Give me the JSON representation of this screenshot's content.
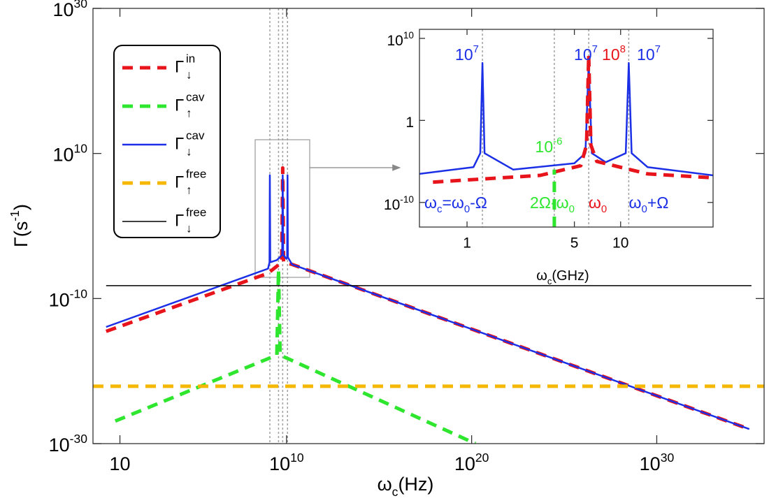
{
  "chart_data": [
    {
      "type": "line",
      "xscale": "log",
      "yscale": "log",
      "xlabel": [
        "ω",
        {
          "sub": "c"
        },
        "(Hz)"
      ],
      "ylabel": [
        "Γ(s",
        {
          "sup": "-1"
        },
        ")"
      ],
      "xlim": [
        0.35,
        6.3e+35
      ],
      "ylim": [
        1e-30,
        1e+30
      ],
      "xticks": [
        10,
        {
          "value": 10000000000.0,
          "label": [
            "10",
            {
              "sup": "10"
            }
          ]
        },
        {
          "value": 1e+20,
          "label": [
            "10",
            {
              "sup": "20"
            }
          ]
        },
        {
          "value": 1e+30,
          "label": [
            "10",
            {
              "sup": "30"
            }
          ]
        }
      ],
      "yticks": [
        {
          "value": 1e-30,
          "label": [
            "10",
            {
              "sup": "-30"
            }
          ]
        },
        {
          "value": 1e-10,
          "label": [
            "10",
            {
              "sup": "-10"
            }
          ]
        },
        {
          "value": 10000000000.0,
          "label": [
            "10",
            {
              "sup": "10"
            }
          ]
        },
        {
          "value": 1e+30,
          "label": [
            "10",
            {
              "sup": "30"
            }
          ]
        }
      ],
      "vlines": [
        1260000000.0,
        3700000000.0,
        6200000000.0,
        11300000000.0
      ],
      "legend": "upper left",
      "series": [
        {
          "name": "Γ",
          "name_sup": "in",
          "name_sub": "↓",
          "color": "#e8141b",
          "style": "dashed",
          "x": [
            1.8,
            1000000000.0,
            5500000000.0,
            6200000000.0,
            6900000000.0,
            20000000000.0,
            1e+35
          ],
          "values": [
            3e-15,
            3e-07,
            1e-05,
            100000000.0,
            1e-05,
            5e-06,
            1e-28
          ]
        },
        {
          "name": "Γ",
          "name_sup": "cav",
          "name_sub": "↑",
          "color": "#2ee62e",
          "style": "dashed",
          "x": [
            5.6,
            3000000000.0,
            3700000000.0,
            4500000000.0,
            1.6e+20
          ],
          "values": [
            1.3e-27,
            1.6e-18,
            1e-06,
            1.6e-18,
            1e-30
          ]
        },
        {
          "name": "Γ",
          "name_sup": "cav",
          "name_sub": "↓",
          "color": "#1a2fe6",
          "style": "solid",
          "x": [
            1.8,
            1000000000.0,
            1200000000.0,
            1260000000.0,
            1320000000.0,
            3000000000.0,
            5800000000.0,
            6200000000.0,
            6600000000.0,
            10000000000.0,
            10800000000.0,
            11300000000.0,
            11800000000.0,
            20000000000.0,
            1e+35
          ],
          "values": [
            1.2e-14,
            1.3e-06,
            1e-05,
            10000000.0,
            1e-05,
            2e-05,
            0.0001,
            10000000.0,
            0.0001,
            3e-05,
            5e-05,
            10000000.0,
            5e-05,
            5e-06,
            1e-28
          ]
        },
        {
          "name": "Γ",
          "name_sup": "free",
          "name_sub": "↑",
          "color": "#f5b700",
          "style": "dashed",
          "x": [
            0.35,
            6.3e+35
          ],
          "values": [
            8e-23,
            8e-23
          ]
        },
        {
          "name": "Γ",
          "name_sup": "free",
          "name_sub": "↓",
          "color": "#000000",
          "style": "thin",
          "x": [
            1.8,
            1.3e+35
          ],
          "values": [
            6e-09,
            6e-09
          ]
        }
      ]
    },
    {
      "type": "line",
      "xscale": "log",
      "yscale": "log",
      "xlabel": [
        "ω",
        {
          "sub": "c"
        },
        "(GHz)"
      ],
      "xlim": [
        0.49,
        40
      ],
      "ylim": [
        1e-13,
        126000000000.0
      ],
      "xticks": [
        1,
        5,
        10
      ],
      "yticks": [
        {
          "value": 1e-10,
          "label": [
            "10",
            {
              "sup": "-10"
            }
          ]
        },
        1,
        {
          "value": 10000000000.0,
          "label": [
            "10",
            {
              "sup": "10"
            }
          ]
        }
      ],
      "vlines": [
        1.26,
        3.7,
        6.2,
        11.3
      ],
      "series": [
        {
          "color": "#1a2fe6",
          "style": "solid",
          "x": [
            0.49,
            1.1,
            1.22,
            1.26,
            1.3,
            2,
            5,
            5.9,
            6.2,
            6.5,
            8,
            10.8,
            11.3,
            11.8,
            15,
            40
          ],
          "values": [
            3e-07,
            2e-06,
            0.0001,
            10000000.0,
            0.0001,
            1e-06,
            6e-06,
            0.0001,
            10000000.0,
            0.0001,
            8e-06,
            0.0001,
            10000000.0,
            0.0001,
            2e-06,
            2e-07
          ]
        },
        {
          "color": "#e8141b",
          "style": "dashed",
          "x": [
            0.6,
            3,
            5.5,
            6.0,
            6.2,
            6.4,
            7,
            15,
            40
          ],
          "values": [
            3e-08,
            2e-07,
            3e-06,
            0.001,
            100000000.0,
            0.001,
            1e-05,
            3e-07,
            1e-07
          ]
        },
        {
          "color": "#2ee62e",
          "style": "dashed",
          "x": [
            3.7,
            3.7
          ],
          "values": [
            1e-13,
            1e-06
          ]
        }
      ],
      "annotations": [
        {
          "text": [
            "10",
            {
              "sup": "7"
            }
          ],
          "color": "#1a2fe6"
        },
        {
          "text": [
            "10",
            {
              "sup": "7"
            }
          ],
          "color": "#1a2fe6"
        },
        {
          "text": [
            "10",
            {
              "sup": "8"
            }
          ],
          "color": "#e8141b"
        },
        {
          "text": [
            "10",
            {
              "sup": "7"
            }
          ],
          "color": "#1a2fe6"
        },
        {
          "text": [
            "10",
            {
              "sup": "-6"
            }
          ],
          "color": "#2ee62e"
        },
        {
          "text": [
            "ω",
            {
              "sub": "c"
            },
            "=ω",
            {
              "sub": "0"
            },
            "-Ω"
          ],
          "color": "#1a2fe6"
        },
        {
          "text": [
            "2Ω-ω",
            {
              "sub": "0"
            }
          ],
          "color": "#2ee62e"
        },
        {
          "text": [
            "ω",
            {
              "sub": "0"
            }
          ],
          "color": "#e8141b"
        },
        {
          "text": [
            "ω",
            {
              "sub": "0"
            },
            "+Ω"
          ],
          "color": "#1a2fe6"
        }
      ]
    }
  ]
}
